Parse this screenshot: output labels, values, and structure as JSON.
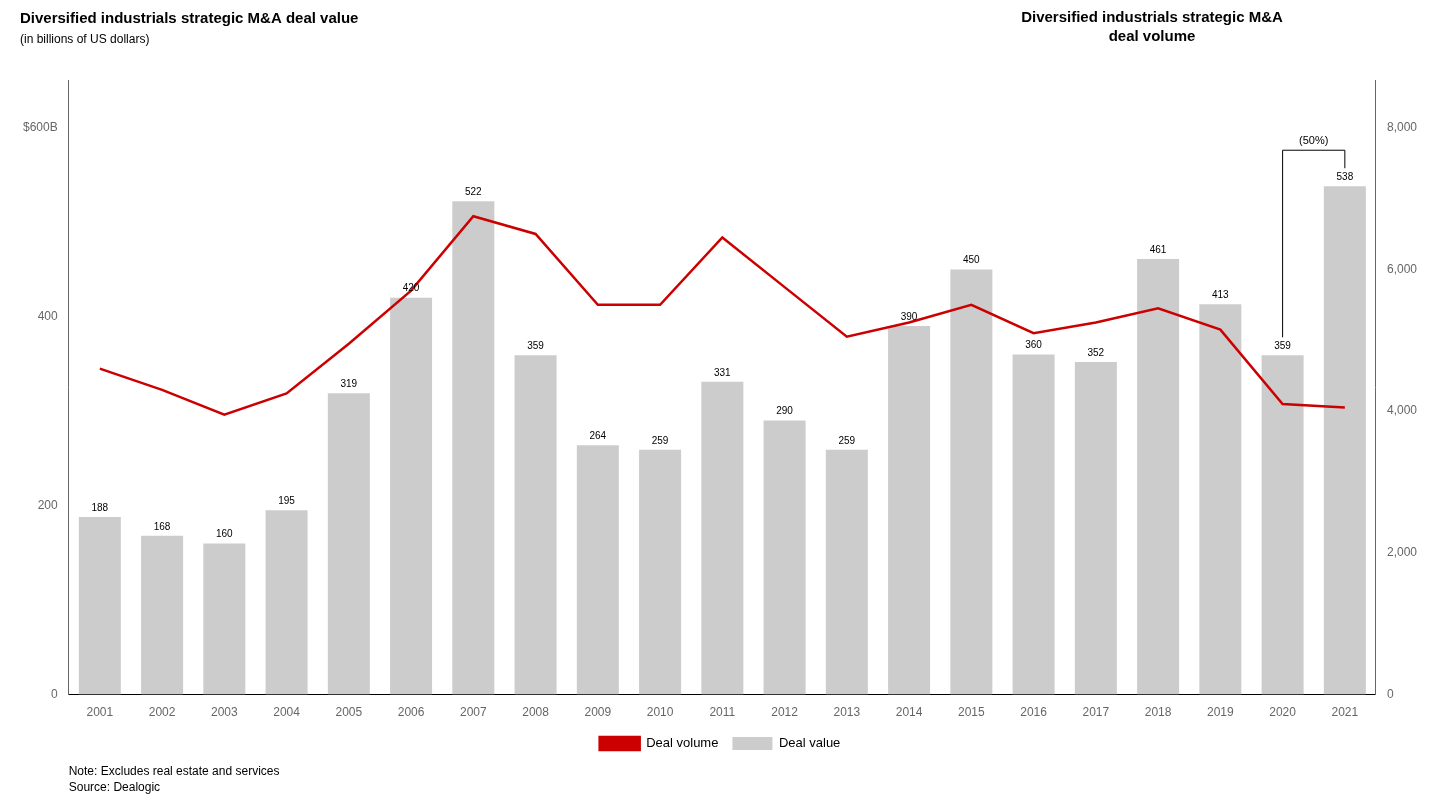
{
  "chart_data": {
    "type": "bar",
    "title": "Diversified industrials strategic M&A deal value",
    "subtitle": "(in billions of US dollars)",
    "y2label": "Diversified industrials strategic M&A\ndeal volume",
    "note": "Note: Excludes real estate and services\nSource: Dealogic",
    "categories": [
      "2001",
      "2002",
      "2003",
      "2004",
      "2005",
      "2006",
      "2007",
      "2008",
      "2009",
      "2010",
      "2011",
      "2012",
      "2013",
      "2014",
      "2015",
      "2016",
      "2017",
      "2018",
      "2019",
      "2020",
      "2021"
    ],
    "series": [
      {
        "name": "Deal value",
        "type": "bar",
        "color": "#cccccc",
        "data_labels": true,
        "values": [
          188,
          168,
          160,
          195,
          319,
          420,
          522,
          359,
          264,
          259,
          331,
          290,
          259,
          390,
          450,
          360,
          352,
          461,
          413,
          359,
          538
        ]
      },
      {
        "name": "Deal volume",
        "type": "line",
        "color": "#cc0000",
        "axis": "y2",
        "values": [
          4600,
          4300,
          3950,
          4250,
          4950,
          5700,
          6750,
          6500,
          5500,
          5500,
          6450,
          5750,
          5050,
          5250,
          5500,
          5100,
          5250,
          5450,
          5150,
          4100,
          4050
        ]
      }
    ],
    "ylim": [
      0,
      650
    ],
    "yticks": [
      0,
      200,
      400,
      {
        "value": 600,
        "label": "$600B"
      }
    ],
    "y2lim": [
      0,
      8667
    ],
    "y2ticks": [
      0,
      {
        "value": 2000,
        "label": "2,000"
      },
      {
        "value": 4000,
        "label": "4,000"
      },
      {
        "value": 6000,
        "label": "6,000"
      },
      {
        "value": 8000,
        "label": "8,000"
      }
    ],
    "annotations": [
      {
        "text": "(50%)",
        "from": "2020",
        "to": "2021"
      }
    ],
    "grid": false,
    "legend": "bottom"
  }
}
